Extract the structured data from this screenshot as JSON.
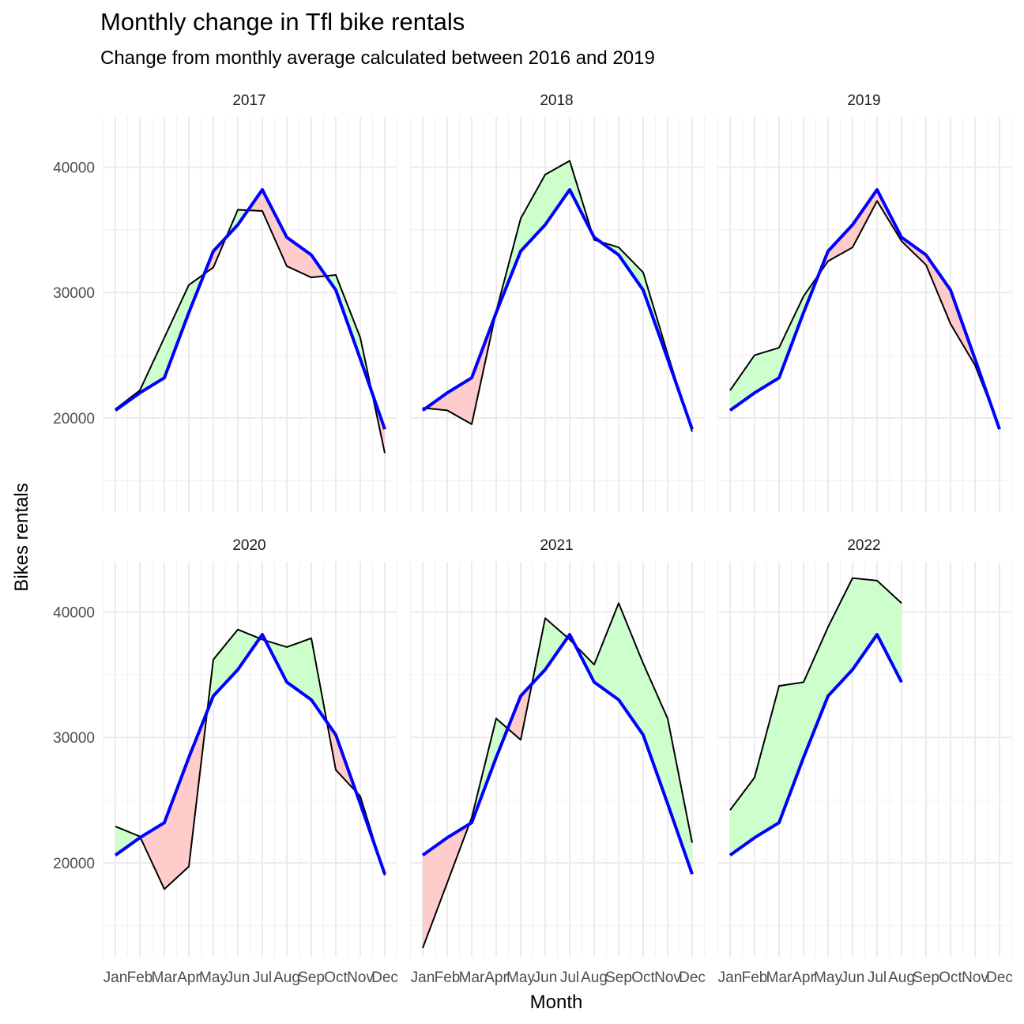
{
  "chart_data": {
    "type": "area",
    "title": "Monthly change in Tfl bike rentals",
    "subtitle": "Change from monthly average calculated between 2016 and 2019",
    "xlabel": "Month",
    "ylabel": "Bikes rentals",
    "ylim": [
      12500,
      44000
    ],
    "y_ticks": [
      20000,
      30000,
      40000
    ],
    "categories": [
      "Jan",
      "Feb",
      "Mar",
      "Apr",
      "May",
      "Jun",
      "Jul",
      "Aug",
      "Sep",
      "Oct",
      "Nov",
      "Dec"
    ],
    "grid": true,
    "colors": {
      "above": "#ccffcc",
      "below": "#ffcccc",
      "actual_line": "#000000",
      "average_line": "#0000ff",
      "strip": "#ffffff",
      "grid": "#ebebeb"
    },
    "series": [
      {
        "name": "average",
        "values": [
          20600,
          22000,
          23200,
          28400,
          33300,
          35400,
          38200,
          34400,
          33000,
          30200,
          24700,
          19100
        ]
      }
    ],
    "panels": [
      {
        "label": "2017",
        "actual": [
          20700,
          22200,
          26400,
          30600,
          32000,
          36600,
          36500,
          32100,
          31200,
          31400,
          26400,
          17200
        ]
      },
      {
        "label": "2018",
        "actual": [
          20800,
          20600,
          19500,
          28500,
          35900,
          39400,
          40500,
          34200,
          33600,
          31600,
          25100,
          18900
        ]
      },
      {
        "label": "2019",
        "actual": [
          22200,
          25000,
          25600,
          29700,
          32500,
          33600,
          37300,
          34100,
          32200,
          27500,
          24200,
          19200
        ]
      },
      {
        "label": "2020",
        "actual": [
          22900,
          22100,
          17900,
          19700,
          36200,
          38600,
          37800,
          37200,
          37900,
          27400,
          25300,
          19000
        ]
      },
      {
        "label": "2021",
        "actual": [
          13200,
          18400,
          23600,
          31500,
          29800,
          39500,
          37800,
          35800,
          40700,
          35900,
          31500,
          21600
        ]
      },
      {
        "label": "2022",
        "actual": [
          24200,
          26800,
          34100,
          34400,
          38800,
          42700,
          42500,
          40700,
          null,
          null,
          null,
          null
        ]
      }
    ]
  }
}
